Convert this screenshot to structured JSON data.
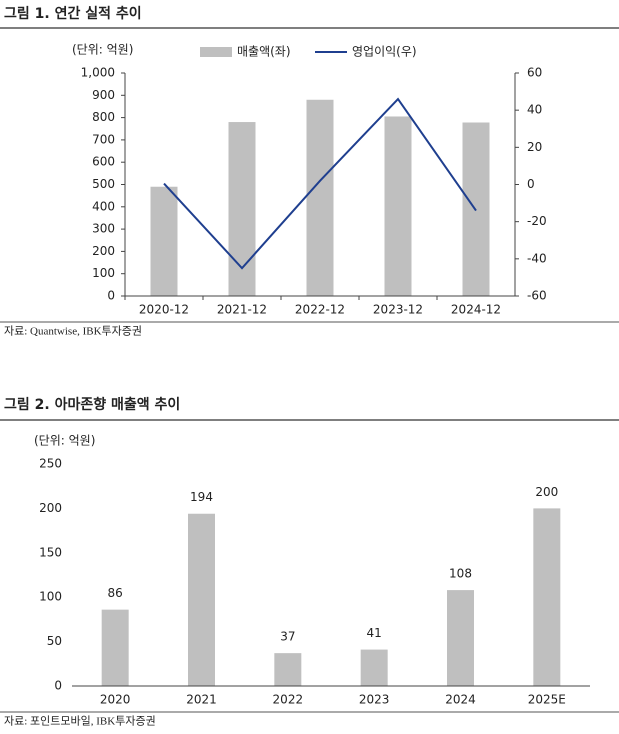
{
  "chart_data": [
    {
      "type": "combo",
      "title": "그림 1. 연간 실적 추이",
      "unit_label": "(단위: 억원)",
      "source": "자료: Quantwise, IBK투자증권",
      "categories": [
        "2020-12",
        "2021-12",
        "2022-12",
        "2023-12",
        "2024-12"
      ],
      "series": [
        {
          "name": "매출액(좌)",
          "type": "bar",
          "color": "#bfbfbf",
          "values": [
            490,
            780,
            880,
            805,
            778
          ]
        },
        {
          "name": "영업이익(우)",
          "type": "line",
          "axis": "y2",
          "color": "#1f3f8f",
          "values": [
            0.5,
            -45,
            2,
            46,
            -14
          ]
        }
      ],
      "ylim": [
        0,
        1000
      ],
      "yticks": [
        0,
        100,
        200,
        300,
        400,
        500,
        600,
        700,
        800,
        900,
        {
          "value": 1000,
          "label": "1,000"
        }
      ],
      "y2lim": [
        -60,
        60
      ],
      "y2ticks": [
        -60,
        -40,
        -20,
        0,
        20,
        40,
        60
      ],
      "legend": "top"
    },
    {
      "type": "bar",
      "title": "그림 2. 아마존향 매출액 추이",
      "unit_label": "(단위: 억원)",
      "source": "자료: 포인트모바일, IBK투자증권",
      "categories": [
        "2020",
        "2021",
        "2022",
        "2023",
        "2024",
        "2025E"
      ],
      "values": [
        86,
        194,
        37,
        41,
        108,
        200
      ],
      "color": "#bfbfbf",
      "ylim": [
        0,
        250
      ],
      "yticks": [
        0,
        50,
        100,
        150,
        200,
        250
      ]
    }
  ]
}
